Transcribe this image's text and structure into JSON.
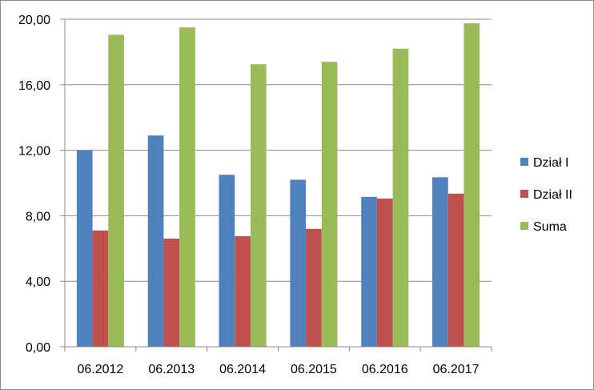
{
  "chart_data": {
    "type": "bar",
    "title": "",
    "xlabel": "",
    "ylabel": "",
    "categories": [
      "06.2012",
      "06.2013",
      "06.2014",
      "06.2015",
      "06.2016",
      "06.2017"
    ],
    "ylim": [
      0,
      20
    ],
    "yticks": [
      0,
      4,
      8,
      12,
      16,
      20
    ],
    "ytick_labels": [
      "0,00",
      "4,00",
      "8,00",
      "12,00",
      "16,00",
      "20,00"
    ],
    "grid": true,
    "legend_position": "right",
    "series": [
      {
        "name": "Dział I",
        "color": "#4f81bd",
        "values": [
          12.0,
          12.9,
          10.5,
          10.2,
          9.15,
          10.35
        ]
      },
      {
        "name": "Dział II",
        "color": "#c0504d",
        "values": [
          7.1,
          6.6,
          6.75,
          7.2,
          9.05,
          9.35
        ]
      },
      {
        "name": "Suma",
        "color": "#9bbb59",
        "values": [
          19.05,
          19.5,
          17.25,
          17.4,
          18.2,
          19.75
        ]
      }
    ]
  }
}
